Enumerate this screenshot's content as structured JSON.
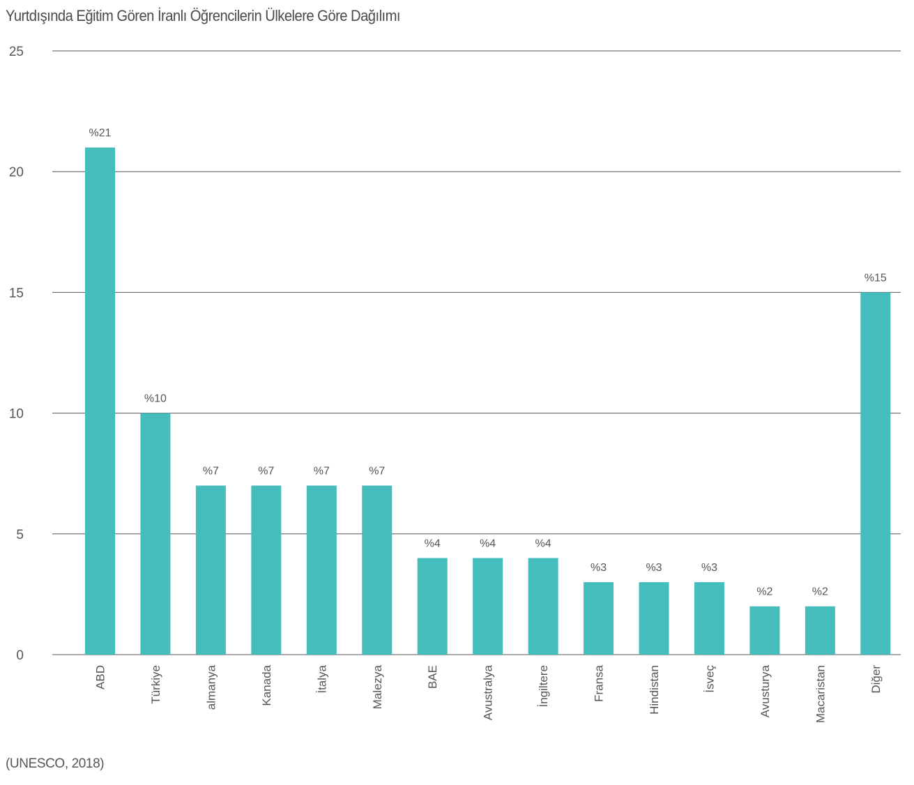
{
  "title": "Yurtdışında Eğitim Gören İranlı Öğrencilerin Ülkelere Göre Dağılımı",
  "source": "(UNESCO, 2018)",
  "colors": {
    "bar": "#45bdbd",
    "gridline": "#555555",
    "text": "#555555"
  },
  "chart_data": {
    "type": "bar",
    "title": "Yurtdışında Eğitim Gören İranlı Öğrencilerin Ülkelere Göre Dağılımı",
    "categories": [
      "ABD",
      "Türkiye",
      "almanya",
      "Kanada",
      "İtalya",
      "Malezya",
      "BAE",
      "Avustralya",
      "İngiltere",
      "Fransa",
      "Hindistan",
      "İsveç",
      "Avusturya",
      "Macaristan",
      "Diğer"
    ],
    "values": [
      21,
      10,
      7,
      7,
      7,
      7,
      4,
      4,
      4,
      3,
      3,
      3,
      2,
      2,
      15
    ],
    "data_labels": [
      "%21",
      "%10",
      "%7",
      "%7",
      "%7",
      "%7",
      "%4",
      "%4",
      "%4",
      "%3",
      "%3",
      "%3",
      "%2",
      "%2",
      "%15"
    ],
    "yticks": [
      "0",
      "5",
      "10",
      "15",
      "20",
      "25"
    ],
    "ylim": [
      0,
      25
    ],
    "grid": true,
    "xlabel": "",
    "ylabel": ""
  }
}
